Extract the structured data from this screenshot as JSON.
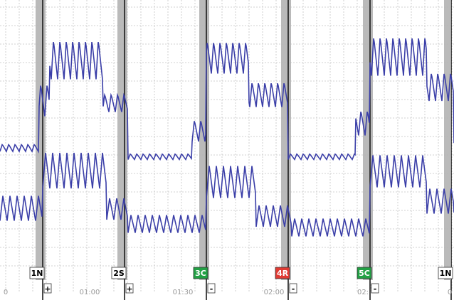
{
  "chart_data": {
    "type": "line",
    "grid": true,
    "time_ticks": [
      {
        "t": "0"
      },
      {
        "t": "01:00"
      },
      {
        "t": "01:30"
      },
      {
        "t": "02:00"
      },
      {
        "t": "02:"
      },
      {
        "t": "0"
      }
    ],
    "events": [
      {
        "label": "1N",
        "sign": "+",
        "color": "#ffffff",
        "text_color": "#000000"
      },
      {
        "label": "2S",
        "sign": "+",
        "color": "#ffffff",
        "text_color": "#000000"
      },
      {
        "label": "3C",
        "sign": "-",
        "color": "#22a044",
        "text_color": "#ffffff"
      },
      {
        "label": "4R",
        "sign": "-",
        "color": "#e03a33",
        "text_color": "#ffffff"
      },
      {
        "label": "5C",
        "sign": "-",
        "color": "#22a044",
        "text_color": "#ffffff"
      },
      {
        "label": "1N",
        "sign": "",
        "color": "#ffffff",
        "text_color": "#000000"
      }
    ],
    "series": [
      {
        "color": "#3b3fa8"
      },
      {
        "color": "#3b3fa8"
      }
    ]
  }
}
